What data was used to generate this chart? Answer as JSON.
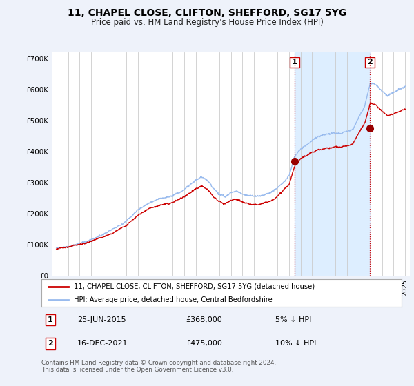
{
  "title": "11, CHAPEL CLOSE, CLIFTON, SHEFFORD, SG17 5YG",
  "subtitle": "Price paid vs. HM Land Registry's House Price Index (HPI)",
  "ylim": [
    0,
    720000
  ],
  "yticks": [
    0,
    100000,
    200000,
    300000,
    400000,
    500000,
    600000,
    700000
  ],
  "ytick_labels": [
    "£0",
    "£100K",
    "£200K",
    "£300K",
    "£400K",
    "£500K",
    "£600K",
    "£700K"
  ],
  "bg_color": "#eef2fa",
  "plot_bg_color": "#ffffff",
  "grid_color": "#cccccc",
  "line1_color": "#cc0000",
  "line2_color": "#99bbee",
  "shade_color": "#ddeeff",
  "marker_color": "#990000",
  "sale1_date": 2015.49,
  "sale1_price": 368000,
  "sale1_label": "1",
  "sale2_date": 2021.96,
  "sale2_price": 475000,
  "sale2_label": "2",
  "vline_color": "#cc0000",
  "legend_line1": "11, CHAPEL CLOSE, CLIFTON, SHEFFORD, SG17 5YG (detached house)",
  "legend_line2": "HPI: Average price, detached house, Central Bedfordshire",
  "note1_label": "1",
  "note1_date": "25-JUN-2015",
  "note1_price": "£368,000",
  "note1_hpi": "5% ↓ HPI",
  "note2_label": "2",
  "note2_date": "16-DEC-2021",
  "note2_price": "£475,000",
  "note2_hpi": "10% ↓ HPI",
  "footer": "Contains HM Land Registry data © Crown copyright and database right 2024.\nThis data is licensed under the Open Government Licence v3.0.",
  "xlim_left": 1994.6,
  "xlim_right": 2025.4
}
